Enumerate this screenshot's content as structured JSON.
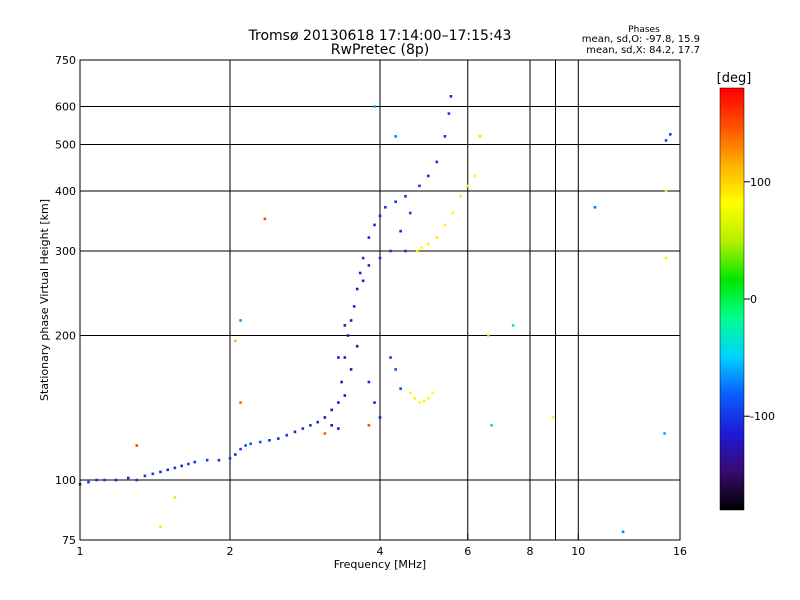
{
  "header": {
    "title": "Tromsø 20130618 17:14:00–17:15:43",
    "subtitle": "RwPretec (8p)",
    "phases_label": "Phases",
    "phases_o": "mean, sd,O: -97.8, 15.9",
    "phases_x": "mean, sd,X: 84.2, 17.7"
  },
  "chart_data": {
    "type": "scatter",
    "xlabel": "Frequency [MHz]",
    "ylabel": "Stationary phase Virtual Height [km]",
    "x_scale": "log",
    "y_scale": "log",
    "xlim": [
      1,
      16
    ],
    "ylim": [
      75,
      750
    ],
    "x_ticks": [
      1,
      2,
      4,
      6,
      8,
      10,
      16
    ],
    "x_tick_labels": [
      "1",
      "2",
      "4",
      "6",
      "8",
      "10",
      "16"
    ],
    "x_gridlines": [
      2,
      4,
      6,
      8,
      9,
      10
    ],
    "y_ticks": [
      75,
      100,
      200,
      300,
      400,
      500,
      600,
      750
    ],
    "y_tick_labels": [
      "75",
      "100",
      "200",
      "300",
      "400",
      "500",
      "600",
      "750"
    ],
    "y_gridlines": [
      100,
      200,
      300,
      400,
      500,
      600
    ],
    "grid": true,
    "colorbar": {
      "label": "[deg]",
      "range": [
        -180,
        180
      ],
      "ticks": [
        100,
        0,
        -100
      ],
      "tick_labels": [
        "100",
        "0",
        "-100"
      ],
      "colors": [
        "#000000",
        "#3a0a6e",
        "#1d1bd6",
        "#0a5cff",
        "#00d2ff",
        "#00ff90",
        "#00e600",
        "#b4f000",
        "#ffff00",
        "#ffb000",
        "#ff5000",
        "#ff0000"
      ]
    },
    "series": [
      {
        "points": [
          [
            1.0,
            98,
            -105
          ],
          [
            1.04,
            99,
            -100
          ],
          [
            1.08,
            100,
            -105
          ],
          [
            1.12,
            100,
            -100
          ],
          [
            1.18,
            100,
            -110
          ],
          [
            1.25,
            101,
            -105
          ],
          [
            1.3,
            100,
            -100
          ],
          [
            1.35,
            102,
            -105
          ],
          [
            1.4,
            103,
            -100
          ],
          [
            1.45,
            104,
            -105
          ],
          [
            1.5,
            105,
            -110
          ],
          [
            1.55,
            106,
            -100
          ],
          [
            1.6,
            107,
            -105
          ],
          [
            1.65,
            108,
            -100
          ],
          [
            1.7,
            109,
            -105
          ],
          [
            1.8,
            110,
            -100
          ],
          [
            1.9,
            110,
            -110
          ],
          [
            2.0,
            111,
            -100
          ],
          [
            2.05,
            113,
            -105
          ],
          [
            2.1,
            116,
            -95
          ],
          [
            2.15,
            118,
            -90
          ],
          [
            2.2,
            119,
            -85
          ],
          [
            2.3,
            120,
            -90
          ],
          [
            2.4,
            121,
            -100
          ],
          [
            2.5,
            122,
            -105
          ],
          [
            2.6,
            124,
            -100
          ],
          [
            2.7,
            126,
            -110
          ],
          [
            2.8,
            128,
            -105
          ],
          [
            2.9,
            130,
            -100
          ],
          [
            3.0,
            132,
            -110
          ],
          [
            3.1,
            135,
            -115
          ],
          [
            3.2,
            140,
            -120
          ],
          [
            3.3,
            145,
            -115
          ],
          [
            3.35,
            160,
            -120
          ],
          [
            3.4,
            180,
            -125
          ],
          [
            3.45,
            200,
            -120
          ],
          [
            3.5,
            215,
            -115
          ],
          [
            3.55,
            230,
            -110
          ],
          [
            3.6,
            250,
            -115
          ],
          [
            3.65,
            270,
            -110
          ],
          [
            3.7,
            290,
            -105
          ],
          [
            3.8,
            320,
            -110
          ],
          [
            3.9,
            340,
            -105
          ],
          [
            4.0,
            355,
            -110
          ],
          [
            4.1,
            370,
            -105
          ],
          [
            4.3,
            380,
            -100
          ],
          [
            4.5,
            390,
            -105
          ],
          [
            4.8,
            410,
            -100
          ],
          [
            5.0,
            430,
            -105
          ],
          [
            5.2,
            460,
            -100
          ],
          [
            5.4,
            520,
            -105
          ],
          [
            5.5,
            580,
            -100
          ],
          [
            5.55,
            630,
            -110
          ],
          [
            3.2,
            130,
            -125
          ],
          [
            3.3,
            128,
            -120
          ],
          [
            3.5,
            170,
            -130
          ],
          [
            3.6,
            190,
            -125
          ],
          [
            3.4,
            210,
            -120
          ],
          [
            3.3,
            180,
            -115
          ],
          [
            3.4,
            150,
            -118
          ],
          [
            3.8,
            160,
            -110
          ],
          [
            3.9,
            145,
            -108
          ],
          [
            4.0,
            135,
            -112
          ],
          [
            4.2,
            180,
            -95
          ],
          [
            4.3,
            170,
            -90
          ],
          [
            4.4,
            155,
            -95
          ],
          [
            3.7,
            260,
            -112
          ],
          [
            3.8,
            280,
            -108
          ],
          [
            4.2,
            300,
            -105
          ],
          [
            4.4,
            330,
            -110
          ],
          [
            4.6,
            360,
            -100
          ],
          [
            4.0,
            290,
            -108
          ],
          [
            4.5,
            300,
            -104
          ]
        ]
      },
      {
        "points": [
          [
            4.6,
            152,
            80
          ],
          [
            4.7,
            148,
            85
          ],
          [
            4.8,
            145,
            82
          ],
          [
            4.9,
            146,
            88
          ],
          [
            5.0,
            148,
            84
          ],
          [
            5.1,
            152,
            80
          ],
          [
            4.75,
            300,
            90
          ],
          [
            4.85,
            305,
            85
          ],
          [
            5.0,
            310,
            88
          ],
          [
            5.2,
            320,
            90
          ],
          [
            5.4,
            340,
            85
          ],
          [
            5.6,
            360,
            80
          ],
          [
            5.8,
            390,
            90
          ],
          [
            6.0,
            410,
            85
          ],
          [
            6.2,
            430,
            82
          ],
          [
            6.35,
            520,
            60
          ],
          [
            6.6,
            200,
            55
          ],
          [
            8.9,
            135,
            75
          ],
          [
            15.0,
            400,
            80
          ],
          [
            15.0,
            290,
            85
          ],
          [
            2.05,
            195,
            110
          ],
          [
            1.45,
            80,
            90
          ],
          [
            1.55,
            92,
            95
          ]
        ]
      },
      {
        "points": [
          [
            3.9,
            600,
            -60
          ],
          [
            4.3,
            520,
            -70
          ],
          [
            10.8,
            370,
            -75
          ],
          [
            12.3,
            78,
            -70
          ],
          [
            14.9,
            125,
            -60
          ],
          [
            15.0,
            510,
            -90
          ],
          [
            15.3,
            525,
            -95
          ],
          [
            7.4,
            210,
            -40
          ],
          [
            6.7,
            130,
            -45
          ],
          [
            2.1,
            215,
            -65
          ]
        ]
      },
      {
        "points": [
          [
            2.35,
            350,
            150
          ],
          [
            2.1,
            145,
            140
          ],
          [
            1.3,
            118,
            150
          ],
          [
            3.1,
            125,
            145
          ],
          [
            3.8,
            130,
            150
          ]
        ]
      }
    ]
  }
}
